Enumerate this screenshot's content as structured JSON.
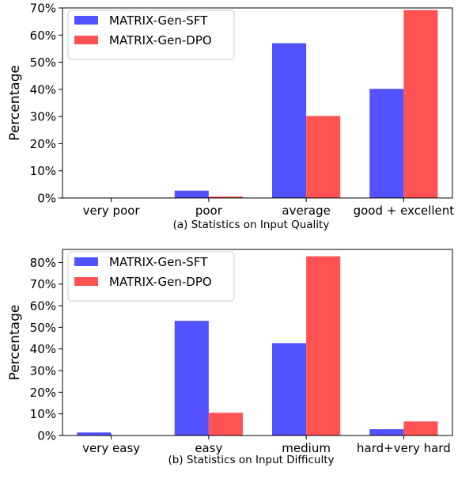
{
  "chart_data": [
    {
      "type": "bar",
      "title": "(a) Statistics on Input Quality",
      "categories": [
        "very poor",
        "poor",
        "average",
        "good + excellent"
      ],
      "series": [
        {
          "name": "MATRIX-Gen-SFT",
          "color": "#5252ff",
          "values": [
            0,
            2.7,
            57.0,
            40.2
          ]
        },
        {
          "name": "MATRIX-Gen-DPO",
          "color": "#ff5252",
          "values": [
            0,
            0.5,
            30.2,
            69.2
          ]
        }
      ],
      "ylabel": "Percentage",
      "ylim": [
        0,
        70
      ],
      "yticks": [
        0,
        10,
        20,
        30,
        40,
        50,
        60,
        70
      ],
      "ytick_labels": [
        "0%",
        "10%",
        "20%",
        "30%",
        "40%",
        "50%",
        "60%",
        "70%"
      ],
      "legend": "top-left",
      "grid": false
    },
    {
      "type": "bar",
      "title": "(b) Statistics on Input Difficulty",
      "categories": [
        "very easy",
        "easy",
        "medium",
        "hard+very hard"
      ],
      "series": [
        {
          "name": "MATRIX-Gen-SFT",
          "color": "#5252ff",
          "values": [
            1.4,
            53.0,
            42.7,
            2.9
          ]
        },
        {
          "name": "MATRIX-Gen-DPO",
          "color": "#ff5252",
          "values": [
            0,
            10.5,
            82.8,
            6.5
          ]
        }
      ],
      "ylabel": "Percentage",
      "ylim": [
        0,
        86
      ],
      "yticks": [
        0,
        10,
        20,
        30,
        40,
        50,
        60,
        70,
        80
      ],
      "ytick_labels": [
        "0%",
        "10%",
        "20%",
        "30%",
        "40%",
        "50%",
        "60%",
        "70%",
        "80%"
      ],
      "legend": "top-left",
      "grid": false
    }
  ]
}
